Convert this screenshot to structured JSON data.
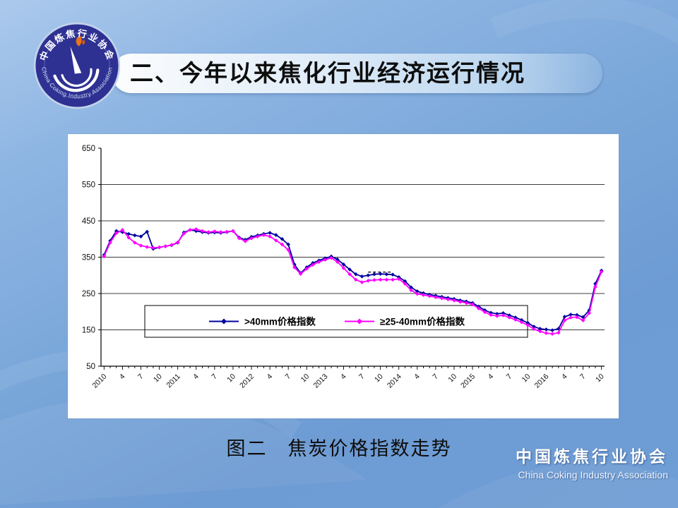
{
  "slide": {
    "title": "二、今年以来焦化行业经济运行情况",
    "caption": "图二　焦炭价格指数走势",
    "footer": {
      "brand_cn": "中国炼焦行业协会",
      "brand_en": "China Coking Industry Association"
    },
    "logo": {
      "ring_top": "中国炼焦行业协会",
      "ring_bottom": "China Coking Industry Association",
      "ring_color": "#2e3192",
      "flame_color": "#e8751a"
    }
  },
  "chart_data": {
    "type": "line",
    "title": "",
    "xlabel": "",
    "ylabel": "",
    "grid": true,
    "x_axis": {
      "start": "2010-01",
      "end": "2016-10",
      "n_points": 82,
      "tick_every": 3,
      "tick_labels": [
        "2010",
        "4",
        "7",
        "10",
        "2011",
        "4",
        "7",
        "10",
        "2012",
        "4",
        "7",
        "10",
        "2013",
        "4",
        "7",
        "10",
        "2014",
        "4",
        "7",
        "10",
        "2015",
        "4",
        "7",
        "10",
        "2016",
        "4",
        "7",
        "10"
      ]
    },
    "y_axis": {
      "min": 50,
      "max": 650,
      "ticks": [
        650,
        550,
        450,
        350,
        250,
        150,
        50
      ]
    },
    "legend": {
      "position": "inside-bottom-box"
    },
    "series": [
      {
        "name": ">40mm价格指数",
        "color": "#0000A0",
        "values": [
          356,
          395,
          422,
          419,
          414,
          410,
          407,
          420,
          373,
          377,
          380,
          383,
          390,
          418,
          425,
          422,
          419,
          417,
          418,
          417,
          419,
          422,
          404,
          398,
          406,
          410,
          414,
          417,
          411,
          400,
          385,
          330,
          306,
          322,
          334,
          341,
          347,
          352,
          344,
          330,
          316,
          303,
          297,
          300,
          303,
          304,
          303,
          302,
          295,
          284,
          267,
          256,
          251,
          247,
          244,
          241,
          238,
          235,
          231,
          228,
          224,
          214,
          204,
          197,
          194,
          196,
          190,
          184,
          177,
          169,
          159,
          153,
          151,
          149,
          153,
          186,
          192,
          191,
          185,
          204,
          277,
          313
        ]
      },
      {
        "name": "≥25-40mm价格指数",
        "color": "#FF00FF",
        "values": [
          352,
          390,
          416,
          425,
          404,
          390,
          382,
          378,
          376,
          377,
          380,
          384,
          391,
          415,
          425,
          427,
          422,
          419,
          421,
          419,
          420,
          422,
          402,
          394,
          402,
          407,
          411,
          407,
          396,
          385,
          370,
          322,
          304,
          318,
          329,
          337,
          343,
          348,
          337,
          320,
          303,
          288,
          281,
          285,
          287,
          288,
          288,
          288,
          290,
          277,
          259,
          249,
          246,
          243,
          240,
          237,
          234,
          231,
          227,
          224,
          220,
          209,
          199,
          191,
          188,
          190,
          184,
          178,
          171,
          163,
          152,
          146,
          141,
          139,
          142,
          176,
          184,
          185,
          176,
          196,
          268,
          310
        ]
      }
    ],
    "annotations": [
      {
        "type": "dashed-line",
        "from_point": 43,
        "to_point": 47,
        "value": 309,
        "color": "#000000"
      },
      {
        "type": "dashed-line",
        "from_point": 43,
        "to_point": 46,
        "value": 289,
        "color": "#55CCEE"
      }
    ]
  }
}
